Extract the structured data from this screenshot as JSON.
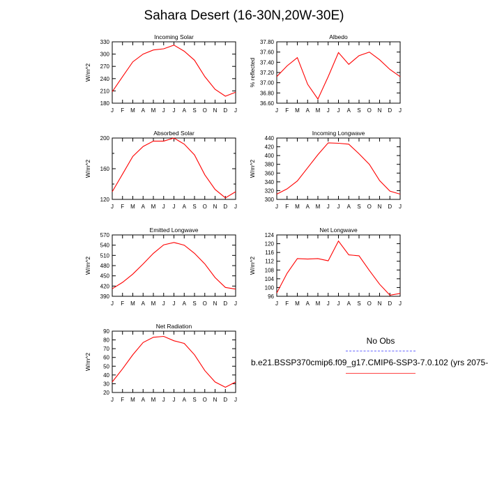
{
  "title": "Sahara Desert (16-30N,20W-30E)",
  "legend": {
    "obs_label": "No Obs",
    "obs_color": "#6666ff",
    "model_label": "b.e21.BSSP370cmip6.f09_g17.CMIP6-SSP3-7.0.102 (yrs 2075-",
    "model_color": "#ff0000"
  },
  "chart_data": [
    {
      "type": "line",
      "title": "Incoming Solar",
      "ylabel": "W/m^2",
      "ylim": [
        180,
        330
      ],
      "yticks": [
        180,
        210,
        240,
        270,
        300,
        330
      ],
      "categories": [
        "J",
        "F",
        "M",
        "A",
        "M",
        "J",
        "J",
        "A",
        "S",
        "O",
        "N",
        "D",
        "J"
      ],
      "values": [
        208,
        245,
        281,
        300,
        310,
        313,
        322,
        307,
        285,
        245,
        214,
        197,
        207
      ]
    },
    {
      "type": "line",
      "title": "Albedo",
      "ylabel": "% reflected",
      "ylim": [
        36.6,
        37.8
      ],
      "yticks": [
        "36.60",
        "36.80",
        "37.00",
        "37.20",
        "37.40",
        "37.60",
        "37.80"
      ],
      "categories": [
        "J",
        "F",
        "M",
        "A",
        "M",
        "J",
        "J",
        "A",
        "S",
        "O",
        "N",
        "D",
        "J"
      ],
      "values": [
        37.12,
        37.33,
        37.49,
        36.97,
        36.68,
        37.12,
        37.59,
        37.36,
        37.53,
        37.6,
        37.45,
        37.26,
        37.12
      ]
    },
    {
      "type": "line",
      "title": "Absorbed Solar",
      "ylabel": "W/m^2",
      "ylim": [
        120,
        200
      ],
      "yticks": [
        120,
        160,
        200
      ],
      "minor_ytick_step": 20,
      "categories": [
        "J",
        "F",
        "M",
        "A",
        "M",
        "J",
        "J",
        "A",
        "S",
        "O",
        "N",
        "D",
        "J"
      ],
      "values": [
        130,
        153,
        176,
        189,
        196,
        196,
        200,
        192,
        178,
        152,
        133,
        122,
        130
      ]
    },
    {
      "type": "line",
      "title": "Incoming Longwave",
      "ylabel": "W/m^2",
      "ylim": [
        300,
        440
      ],
      "yticks": [
        300,
        320,
        340,
        360,
        380,
        400,
        420,
        440
      ],
      "categories": [
        "J",
        "F",
        "M",
        "A",
        "M",
        "J",
        "J",
        "A",
        "S",
        "O",
        "N",
        "D",
        "J"
      ],
      "values": [
        312,
        324,
        342,
        372,
        402,
        429,
        428,
        426,
        404,
        380,
        343,
        319,
        312
      ]
    },
    {
      "type": "line",
      "title": "Emitted Longwave",
      "ylabel": "W/m^2",
      "ylim": [
        390,
        570
      ],
      "yticks": [
        390,
        420,
        450,
        480,
        510,
        540,
        570
      ],
      "categories": [
        "J",
        "F",
        "M",
        "A",
        "M",
        "J",
        "J",
        "A",
        "S",
        "O",
        "N",
        "D",
        "J"
      ],
      "values": [
        412,
        431,
        455,
        485,
        516,
        541,
        548,
        540,
        516,
        485,
        445,
        416,
        411
      ]
    },
    {
      "type": "line",
      "title": "Net Longwave",
      "ylabel": "W/m^2",
      "ylim": [
        96,
        124
      ],
      "yticks": [
        96,
        100,
        104,
        108,
        112,
        116,
        120,
        124
      ],
      "categories": [
        "J",
        "F",
        "M",
        "A",
        "M",
        "J",
        "J",
        "A",
        "S",
        "O",
        "N",
        "D",
        "J"
      ],
      "values": [
        97.5,
        106.5,
        113.2,
        113.0,
        113.2,
        112.2,
        121.2,
        114.9,
        114.5,
        107.8,
        101.5,
        96.5,
        97.3
      ]
    },
    {
      "type": "line",
      "title": "Net Radiation",
      "ylabel": "W/m^2",
      "ylim": [
        20,
        90
      ],
      "yticks": [
        20,
        30,
        40,
        50,
        60,
        70,
        80,
        90
      ],
      "categories": [
        "J",
        "F",
        "M",
        "A",
        "M",
        "J",
        "J",
        "A",
        "S",
        "O",
        "N",
        "D",
        "J"
      ],
      "values": [
        32,
        47,
        63,
        77,
        83,
        84,
        79,
        76,
        63,
        45,
        32,
        26,
        32
      ]
    }
  ]
}
